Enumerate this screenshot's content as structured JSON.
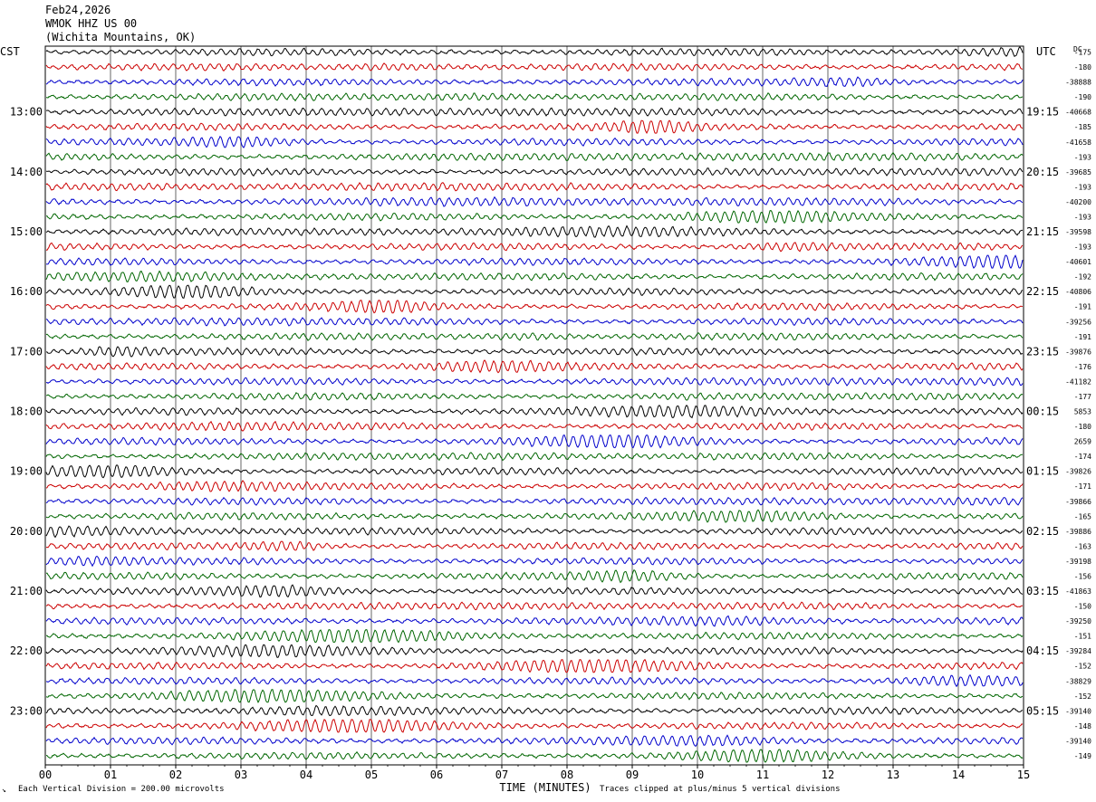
{
  "header": {
    "date": "Feb24,2026",
    "station": "WMOK HHZ US 00",
    "location": "(Wichita Mountains, OK)"
  },
  "left_tz": "CST",
  "right_tz": "UTC",
  "dc_label": "DC",
  "footer": {
    "scale": "Each Vertical Division =  200.00 microvolts",
    "clip": "Traces clipped at plus/minus 5 vertical divisions"
  },
  "chart_data": {
    "type": "line",
    "title": "",
    "xlabel": "TIME (MINUTES)",
    "xlim": [
      0,
      15
    ],
    "x_ticks": [
      "00",
      "01",
      "02",
      "03",
      "04",
      "05",
      "06",
      "07",
      "08",
      "09",
      "10",
      "11",
      "12",
      "13",
      "14",
      "15"
    ],
    "rows_per_hour": 4,
    "trace_colors": [
      "#000000",
      "#cc0000",
      "#0000cc",
      "#006600"
    ],
    "left_hour_labels": [
      "13:00",
      "14:00",
      "15:00",
      "16:00",
      "17:00",
      "18:00",
      "19:00",
      "20:00",
      "21:00",
      "22:00",
      "23:00"
    ],
    "right_hour_labels": [
      "19:15",
      "20:15",
      "21:15",
      "22:15",
      "23:15",
      "00:15",
      "01:15",
      "02:15",
      "03:15",
      "04:15",
      "05:15"
    ],
    "dc_offsets": [
      "-175",
      "-180",
      "-38888",
      "-190",
      "-40668",
      "-185",
      "-41658",
      "-193",
      "-39685",
      "-193",
      "-40200",
      "-193",
      "-39598",
      "-193",
      "-40601",
      "-192",
      "-40806",
      "-191",
      "-39256",
      "-191",
      "-39876",
      "-176",
      "-41182",
      "-177",
      "5853",
      "-180",
      "2659",
      "-174",
      "-39826",
      "-171",
      "-39866",
      "-165",
      "-39886",
      "-163",
      "-39198",
      "-156",
      "-41863",
      "-150",
      "-39250",
      "-151",
      "-39284",
      "-152",
      "-38829",
      "-152",
      "-39140",
      "-148",
      "-39140",
      "-149"
    ]
  }
}
